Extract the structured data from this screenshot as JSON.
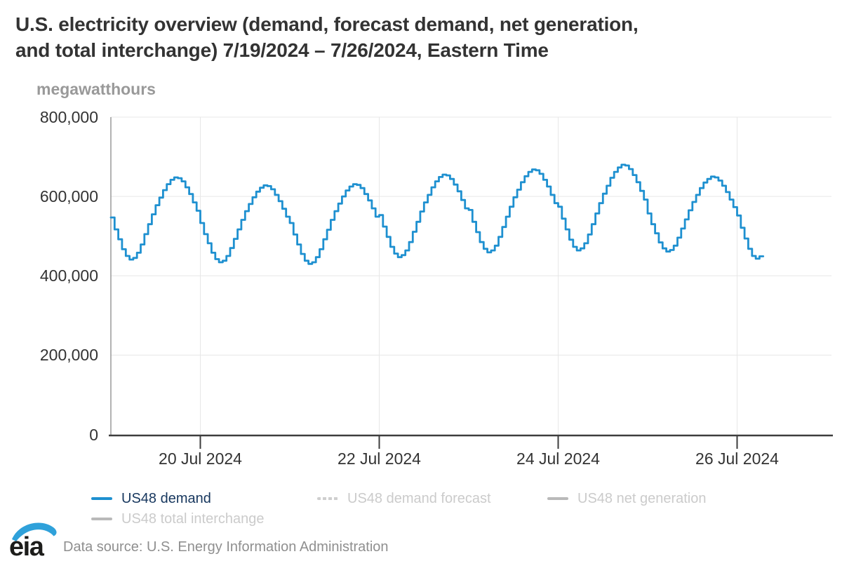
{
  "header": {
    "title_lines": [
      "U.S. electricity overview (demand, forecast demand, net generation,",
      "and total interchange) 7/19/2024 – 7/26/2024, Eastern Time"
    ]
  },
  "axis": {
    "unit_label": "megawatthours"
  },
  "chart_data": {
    "type": "line",
    "step": true,
    "title": "U.S. electricity overview (demand, forecast demand, net generation, and total interchange) 7/19/2024 – 7/26/2024, Eastern Time",
    "ylabel": "megawatthours",
    "ylim": [
      0,
      800000
    ],
    "yticks": [
      800000,
      600000,
      400000,
      200000,
      0
    ],
    "ytick_labels": [
      "800,000",
      "600,000",
      "400,000",
      "200,000",
      "0"
    ],
    "x_start": "2024-07-19 00:00 ET",
    "x_interval_hours": 1,
    "x_axis_span_days": 8.06,
    "xtick_labels": [
      "20 Jul 2024",
      "22 Jul 2024",
      "24 Jul 2024",
      "26 Jul 2024"
    ],
    "xtick_day_offsets": [
      1,
      3,
      5,
      7
    ],
    "grid": true,
    "legend_position": "bottom",
    "series": [
      {
        "name": "US48 demand",
        "color": "#1e90d0",
        "visible": true,
        "unit": "megawatthours",
        "values": [
          547000,
          517000,
          492000,
          467000,
          450000,
          441000,
          445000,
          458000,
          479000,
          505000,
          530000,
          555000,
          578000,
          597000,
          616000,
          631000,
          642000,
          648000,
          646000,
          638000,
          623000,
          606000,
          585000,
          564000,
          533000,
          505000,
          482000,
          458000,
          442000,
          434000,
          438000,
          450000,
          470000,
          493000,
          517000,
          541000,
          563000,
          581000,
          598000,
          612000,
          622000,
          628000,
          626000,
          618000,
          604000,
          588000,
          569000,
          549000,
          533000,
          504000,
          479000,
          455000,
          438000,
          430000,
          434000,
          447000,
          467000,
          492000,
          516000,
          541000,
          563000,
          582000,
          600000,
          615000,
          625000,
          631000,
          629000,
          621000,
          606000,
          590000,
          570000,
          549000,
          553000,
          524000,
          498000,
          473000,
          456000,
          447000,
          452000,
          464000,
          485000,
          511000,
          536000,
          562000,
          585000,
          604000,
          623000,
          638000,
          649000,
          655000,
          653000,
          644000,
          630000,
          613000,
          591000,
          570000,
          566000,
          536000,
          510000,
          485000,
          468000,
          459000,
          464000,
          476000,
          498000,
          523000,
          549000,
          574000,
          598000,
          617000,
          636000,
          651000,
          662000,
          668000,
          666000,
          657000,
          642000,
          625000,
          604000,
          583000,
          574000,
          544000,
          517000,
          491000,
          473000,
          464000,
          469000,
          482000,
          504000,
          530000,
          557000,
          583000,
          607000,
          627000,
          647000,
          662000,
          673000,
          680000,
          678000,
          669000,
          654000,
          636000,
          614000,
          592000,
          557000,
          530000,
          507000,
          484000,
          469000,
          461000,
          465000,
          476000,
          496000,
          519000,
          542000,
          565000,
          586000,
          604000,
          621000,
          635000,
          644000,
          650000,
          648000,
          640000,
          627000,
          611000,
          592000,
          573000,
          552000,
          521000,
          494000,
          468000,
          450000,
          443000,
          449000
        ]
      },
      {
        "name": "US48 demand forecast",
        "color": "#cfcfcf",
        "dash": "dot",
        "visible": false,
        "values": []
      },
      {
        "name": "US48 net generation",
        "color": "#b9b9b9",
        "visible": false,
        "values": []
      },
      {
        "name": "US48 total interchange",
        "color": "#b9b9b9",
        "visible": false,
        "values": []
      }
    ]
  },
  "legend": {
    "items": [
      {
        "label": "US48 demand",
        "active": true,
        "swatch": "solid-blue"
      },
      {
        "label": "US48 demand forecast",
        "active": false,
        "swatch": "dotted-gray"
      },
      {
        "label": "US48 net generation",
        "active": false,
        "swatch": "solid-gray"
      },
      {
        "label": "US48 total interchange",
        "active": false,
        "swatch": "solid-gray"
      }
    ]
  },
  "footer": {
    "logo_text": "eia",
    "source_text": "Data source: U.S. Energy Information Administration"
  },
  "colors": {
    "demand_line": "#1e90d0",
    "active_legend_text": "#17375e",
    "inactive_legend_text": "#cbcbcb",
    "title_text": "#333333",
    "axis_text": "#333333",
    "unit_text": "#999999",
    "gridline": "#e7e7e7",
    "axis_line": "#3d3d3d",
    "y_axis_line": "#999999",
    "logo_blue": "#2fa1da"
  }
}
